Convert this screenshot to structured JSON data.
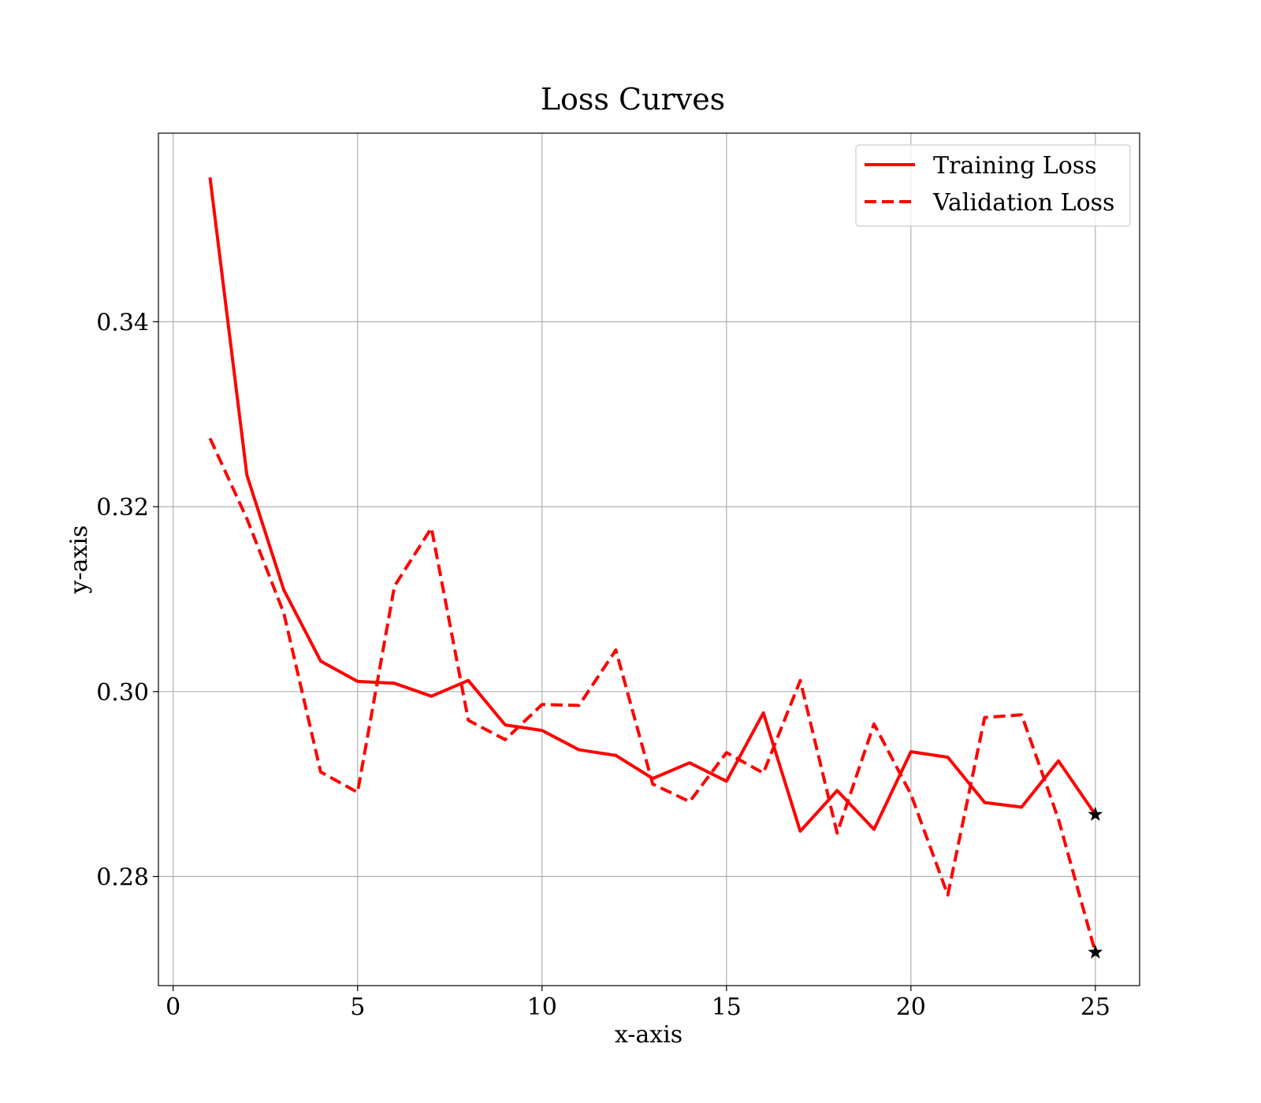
{
  "chart_data": {
    "type": "line",
    "title": "Loss Curves",
    "xlabel": "x-axis",
    "ylabel": "y-axis",
    "xlim": [
      -0.4,
      26.2
    ],
    "ylim": [
      0.2682,
      0.3604
    ],
    "xticks": [
      0,
      5,
      10,
      15,
      20,
      25
    ],
    "xtick_labels": [
      "0",
      "5",
      "10",
      "15",
      "20",
      "25"
    ],
    "yticks": [
      0.28,
      0.3,
      0.32,
      0.34
    ],
    "ytick_labels": [
      "0.28",
      "0.30",
      "0.32",
      "0.34"
    ],
    "grid": true,
    "legend_position": "top-right",
    "x": [
      1,
      2,
      3,
      4,
      5,
      6,
      7,
      8,
      9,
      10,
      11,
      12,
      13,
      14,
      15,
      16,
      17,
      18,
      19,
      20,
      21,
      22,
      23,
      24,
      25
    ],
    "series": [
      {
        "name": "Training Loss",
        "style": "solid",
        "color": "#ff0000",
        "values": [
          0.3556,
          0.3234,
          0.311,
          0.3033,
          0.3011,
          0.3009,
          0.2995,
          0.3012,
          0.2964,
          0.2958,
          0.2937,
          0.2931,
          0.2906,
          0.2923,
          0.2903,
          0.2977,
          0.2849,
          0.2893,
          0.2851,
          0.2935,
          0.2929,
          0.288,
          0.2875,
          0.2925,
          0.2867
        ]
      },
      {
        "name": "Validation Loss",
        "style": "dashed",
        "color": "#ff0000",
        "values": [
          0.3274,
          0.3187,
          0.3085,
          0.2913,
          0.2891,
          0.3114,
          0.3177,
          0.2969,
          0.2948,
          0.2986,
          0.2985,
          0.3045,
          0.29,
          0.2881,
          0.2934,
          0.2912,
          0.3012,
          0.2847,
          0.2965,
          0.2889,
          0.278,
          0.2972,
          0.2975,
          0.2862,
          0.2718
        ]
      }
    ],
    "markers": [
      {
        "series": "Training Loss",
        "x": 25,
        "y": 0.2867,
        "symbol": "star",
        "color": "#000000"
      },
      {
        "series": "Validation Loss",
        "x": 25,
        "y": 0.2718,
        "symbol": "star",
        "color": "#000000"
      }
    ]
  }
}
